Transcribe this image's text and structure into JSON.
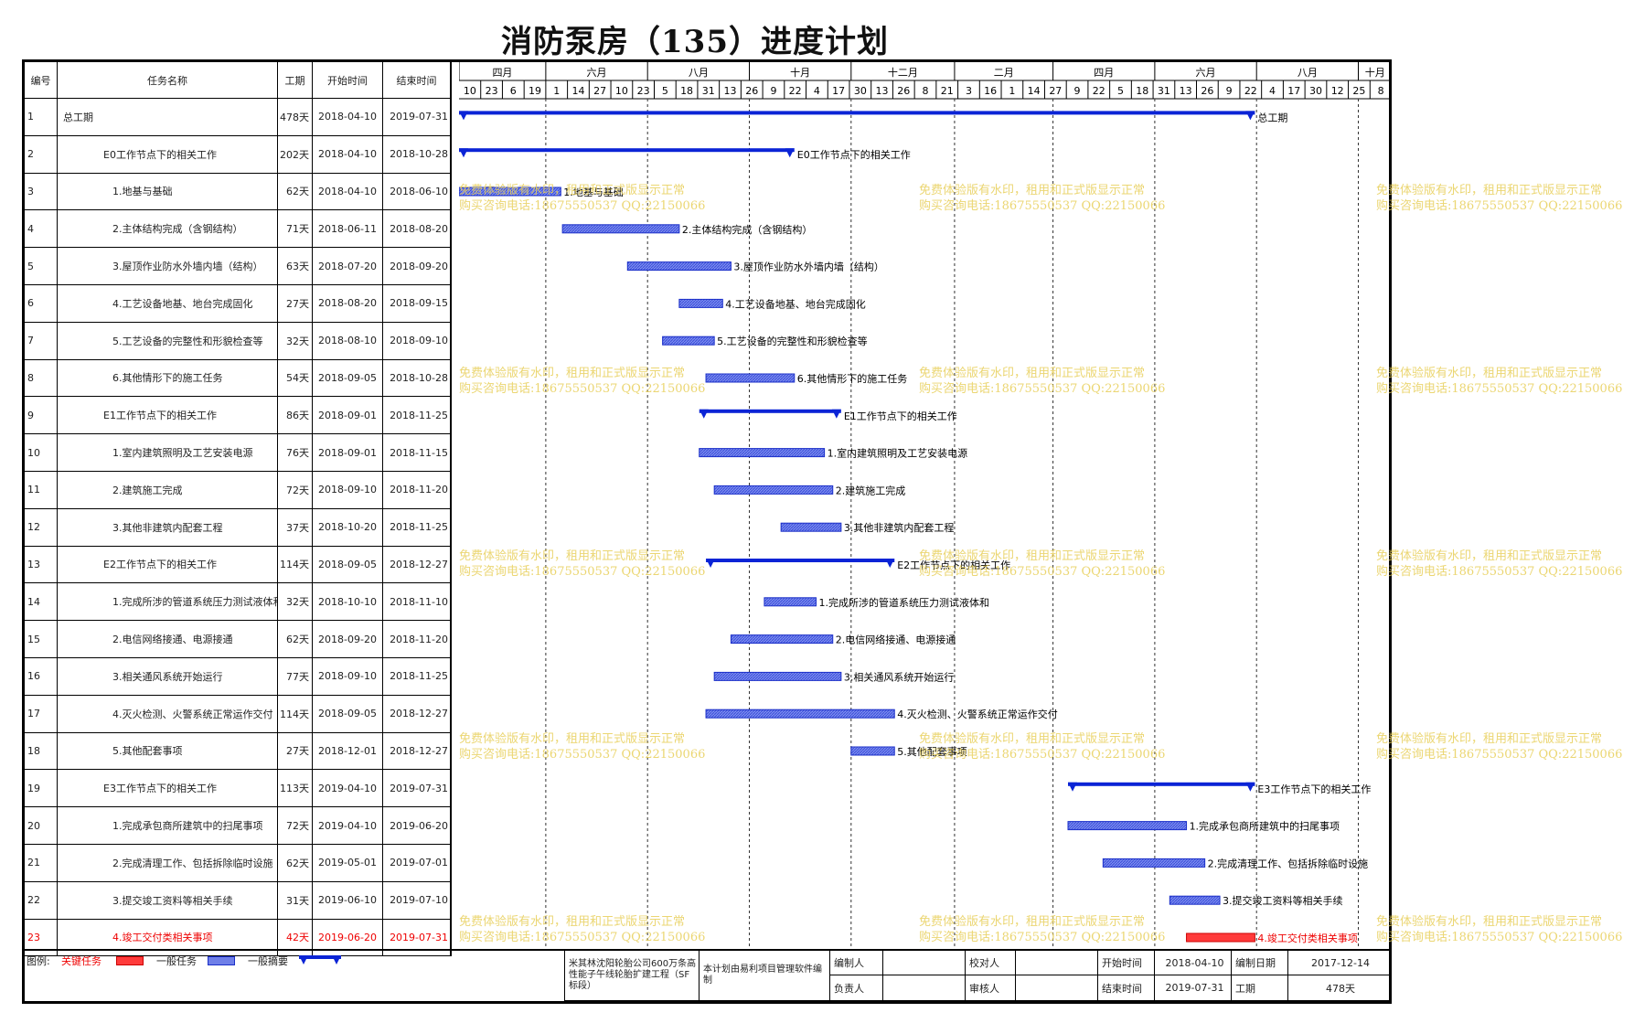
{
  "title": "消防泵房（135）进度计划",
  "columns": {
    "id": "编号",
    "name": "任务名称",
    "duration": "工期",
    "start": "开始时间",
    "end": "结束时间"
  },
  "timescale": {
    "months": [
      {
        "label": "四月",
        "date": "2018-04-01"
      },
      {
        "label": "六月",
        "date": "2018-06-01"
      },
      {
        "label": "八月",
        "date": "2018-08-01"
      },
      {
        "label": "十月",
        "date": "2018-10-01"
      },
      {
        "label": "十二月",
        "date": "2018-12-01"
      },
      {
        "label": "二月",
        "date": "2019-02-01"
      },
      {
        "label": "四月",
        "date": "2019-04-01"
      },
      {
        "label": "六月",
        "date": "2019-06-01"
      },
      {
        "label": "八月",
        "date": "2019-08-01"
      },
      {
        "label": "十月",
        "date": "2019-10-01"
      }
    ],
    "days": [
      "10",
      "23",
      "6",
      "19",
      "1",
      "14",
      "27",
      "10",
      "23",
      "5",
      "18",
      "31",
      "13",
      "26",
      "9",
      "22",
      "4",
      "17",
      "30",
      "13",
      "26",
      "8",
      "21",
      "3",
      "16",
      "1",
      "14",
      "27",
      "9",
      "22",
      "5",
      "18",
      "31",
      "13",
      "26",
      "9",
      "22",
      "4",
      "17",
      "30",
      "12",
      "25",
      "8"
    ],
    "range": [
      "2018-04-10",
      "2019-10-21"
    ]
  },
  "chart_data": {
    "type": "gantt",
    "tasks": [
      {
        "id": "1",
        "name": "总工期",
        "duration": "478天",
        "start": "2018-04-10",
        "end": "2019-07-31",
        "kind": "summary",
        "indent": 0,
        "label": "总工期"
      },
      {
        "id": "2",
        "name": "E0工作节点下的相关工作",
        "duration": "202天",
        "start": "2018-04-10",
        "end": "2018-10-28",
        "kind": "summary",
        "indent": 1,
        "label": "E0工作节点下的相关工作"
      },
      {
        "id": "3",
        "name": "1.地基与基础",
        "duration": "62天",
        "start": "2018-04-10",
        "end": "2018-06-10",
        "kind": "task",
        "indent": 2,
        "label": "1.地基与基础"
      },
      {
        "id": "4",
        "name": "2.主体结构完成（含钢结构）",
        "duration": "71天",
        "start": "2018-06-11",
        "end": "2018-08-20",
        "kind": "task",
        "indent": 2,
        "label": "2.主体结构完成（含钢结构）"
      },
      {
        "id": "5",
        "name": "3.屋顶作业防水外墙内墙（结构）",
        "duration": "63天",
        "start": "2018-07-20",
        "end": "2018-09-20",
        "kind": "task",
        "indent": 2,
        "label": "3.屋顶作业防水外墙内墙（结构）"
      },
      {
        "id": "6",
        "name": "4.工艺设备地基、地台完成固化",
        "duration": "27天",
        "start": "2018-08-20",
        "end": "2018-09-15",
        "kind": "task",
        "indent": 2,
        "label": "4.工艺设备地基、地台完成固化"
      },
      {
        "id": "7",
        "name": "5.工艺设备的完整性和形貌检查等",
        "duration": "32天",
        "start": "2018-08-10",
        "end": "2018-09-10",
        "kind": "task",
        "indent": 2,
        "label": "5.工艺设备的完整性和形貌检查等"
      },
      {
        "id": "8",
        "name": "6.其他情形下的施工任务",
        "duration": "54天",
        "start": "2018-09-05",
        "end": "2018-10-28",
        "kind": "task",
        "indent": 2,
        "label": "6.其他情形下的施工任务"
      },
      {
        "id": "9",
        "name": "E1工作节点下的相关工作",
        "duration": "86天",
        "start": "2018-09-01",
        "end": "2018-11-25",
        "kind": "summary",
        "indent": 1,
        "label": "E1工作节点下的相关工作"
      },
      {
        "id": "10",
        "name": "1.室内建筑照明及工艺安装电源",
        "duration": "76天",
        "start": "2018-09-01",
        "end": "2018-11-15",
        "kind": "task",
        "indent": 2,
        "label": "1.室内建筑照明及工艺安装电源"
      },
      {
        "id": "11",
        "name": "2.建筑施工完成",
        "duration": "72天",
        "start": "2018-09-10",
        "end": "2018-11-20",
        "kind": "task",
        "indent": 2,
        "label": "2.建筑施工完成"
      },
      {
        "id": "12",
        "name": "3.其他非建筑内配套工程",
        "duration": "37天",
        "start": "2018-10-20",
        "end": "2018-11-25",
        "kind": "task",
        "indent": 2,
        "label": "3.其他非建筑内配套工程"
      },
      {
        "id": "13",
        "name": "E2工作节点下的相关工作",
        "duration": "114天",
        "start": "2018-09-05",
        "end": "2018-12-27",
        "kind": "summary",
        "indent": 1,
        "label": "E2工作节点下的相关工作"
      },
      {
        "id": "14",
        "name": "1.完成所涉的管道系统压力测试液体和",
        "duration": "32天",
        "start": "2018-10-10",
        "end": "2018-11-10",
        "kind": "task",
        "indent": 2,
        "label": "1.完成所涉的管道系统压力测试液体和"
      },
      {
        "id": "15",
        "name": "2.电信网络接通、电源接通",
        "duration": "62天",
        "start": "2018-09-20",
        "end": "2018-11-20",
        "kind": "task",
        "indent": 2,
        "label": "2.电信网络接通、电源接通"
      },
      {
        "id": "16",
        "name": "3.相关通风系统开始运行",
        "duration": "77天",
        "start": "2018-09-10",
        "end": "2018-11-25",
        "kind": "task",
        "indent": 2,
        "label": "3.相关通风系统开始运行"
      },
      {
        "id": "17",
        "name": "4.灭火检测、火警系统正常运作交付",
        "duration": "114天",
        "start": "2018-09-05",
        "end": "2018-12-27",
        "kind": "task",
        "indent": 2,
        "label": "4.灭火检测、火警系统正常运作交付"
      },
      {
        "id": "18",
        "name": "5.其他配套事项",
        "duration": "27天",
        "start": "2018-12-01",
        "end": "2018-12-27",
        "kind": "task",
        "indent": 2,
        "label": "5.其他配套事项"
      },
      {
        "id": "19",
        "name": "E3工作节点下的相关工作",
        "duration": "113天",
        "start": "2019-04-10",
        "end": "2019-07-31",
        "kind": "summary",
        "indent": 1,
        "label": "E3工作节点下的相关工作"
      },
      {
        "id": "20",
        "name": "1.完成承包商所建筑中的扫尾事项",
        "duration": "72天",
        "start": "2019-04-10",
        "end": "2019-06-20",
        "kind": "task",
        "indent": 2,
        "label": "1.完成承包商所建筑中的扫尾事项"
      },
      {
        "id": "21",
        "name": "2.完成清理工作、包括拆除临时设施",
        "duration": "62天",
        "start": "2019-05-01",
        "end": "2019-07-01",
        "kind": "task",
        "indent": 2,
        "label": "2.完成清理工作、包括拆除临时设施"
      },
      {
        "id": "22",
        "name": "3.提交竣工资料等相关手续",
        "duration": "31天",
        "start": "2019-06-10",
        "end": "2019-07-10",
        "kind": "task",
        "indent": 2,
        "label": "3.提交竣工资料等相关手续"
      },
      {
        "id": "23",
        "name": "4.竣工交付类相关事项",
        "duration": "42天",
        "start": "2019-06-20",
        "end": "2019-07-31",
        "kind": "critical",
        "indent": 2,
        "label": "4.竣工交付类相关事项"
      }
    ]
  },
  "legend": {
    "prefix": "图例:",
    "critical": "关键任务",
    "normal": "一般任务",
    "summary": "一般摘要"
  },
  "footer": {
    "project": "米其林沈阳轮胎公司600万条高性能子午线轮胎扩建工程（SF标段）",
    "software": "本计划由易利项目管理软件编制",
    "editor_label": "编制人",
    "checker_label": "校对人",
    "manager_label": "负责人",
    "reviewer_label": "审核人",
    "start_label": "开始时间",
    "start_value": "2018-04-10",
    "end_label": "结束时间",
    "end_value": "2019-07-31",
    "date_label": "编制日期",
    "date_value": "2017-12-14",
    "duration_label": "工期",
    "duration_value": "478天"
  },
  "watermark": {
    "line1": "免费体验版有水印，租用和正式版显示正常",
    "line2": "购买咨询电话:18675550537 QQ:22150066"
  },
  "colors": {
    "summary": "#0b24d6",
    "task_fill": "#6f7fe8",
    "critical": "#ff3b3b",
    "watermark": "#e8cf5a"
  }
}
